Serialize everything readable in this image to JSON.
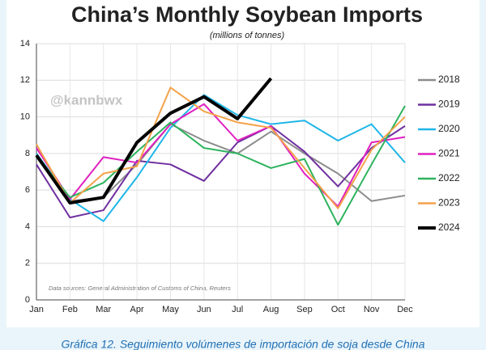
{
  "chart_data": {
    "type": "line",
    "title": "China’s Monthly Soybean Imports",
    "subtitle": "(millions of tonnes)",
    "watermark": "@kannbwx",
    "source": "Data sources: General Administration of Customs of China, Reuters",
    "caption": "Gráfica 12. Seguimiento volúmenes de importación de soja desde China",
    "categories": [
      "Jan",
      "Feb",
      "Mar",
      "Apr",
      "May",
      "Jun",
      "Jul",
      "Aug",
      "Sep",
      "Oct",
      "Nov",
      "Dec"
    ],
    "series": [
      {
        "name": "2018",
        "color": "#8c8c8c",
        "values": [
          7.8,
          5.4,
          5.6,
          7.4,
          9.6,
          8.7,
          8.0,
          9.2,
          8.0,
          6.9,
          5.4,
          5.7
        ]
      },
      {
        "name": "2019",
        "color": "#7030a0",
        "values": [
          7.4,
          4.5,
          4.9,
          7.6,
          7.4,
          6.5,
          8.6,
          9.5,
          8.1,
          6.2,
          8.3,
          9.5
        ]
      },
      {
        "name": "2020",
        "color": "#1fb6e8",
        "values": [
          8.0,
          5.5,
          4.3,
          6.7,
          9.4,
          11.2,
          10.1,
          9.6,
          9.8,
          8.7,
          9.6,
          7.5
        ]
      },
      {
        "name": "2021",
        "color": "#e020c0",
        "values": [
          8.3,
          5.5,
          7.8,
          7.5,
          9.6,
          10.7,
          8.7,
          9.5,
          6.9,
          5.1,
          8.6,
          8.9
        ]
      },
      {
        "name": "2022",
        "color": "#2db35d",
        "values": [
          7.9,
          5.6,
          6.4,
          8.1,
          9.7,
          8.3,
          8.0,
          7.2,
          7.7,
          4.1,
          7.4,
          10.6
        ]
      },
      {
        "name": "2023",
        "color": "#f4a24a",
        "values": [
          8.5,
          5.3,
          6.9,
          7.3,
          11.6,
          10.3,
          9.7,
          9.4,
          7.2,
          5.0,
          8.2,
          10.0
        ]
      },
      {
        "name": "2024",
        "color": "#000000",
        "values": [
          7.9,
          5.3,
          5.6,
          8.6,
          10.2,
          11.1,
          9.9,
          12.1,
          null,
          null,
          null,
          null
        ]
      }
    ],
    "ylim": [
      0,
      14
    ],
    "yticks": [
      0,
      2,
      4,
      6,
      8,
      10,
      12,
      14
    ],
    "grid": true
  }
}
